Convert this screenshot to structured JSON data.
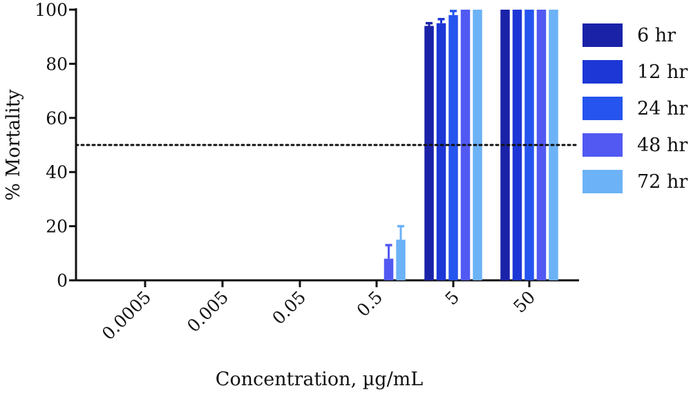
{
  "chart_data": {
    "type": "bar",
    "title": "",
    "xlabel": "Concentration, µg/mL",
    "ylabel": "% Mortality",
    "ylim": [
      0,
      100
    ],
    "yticks": [
      0,
      20,
      40,
      60,
      80,
      100
    ],
    "categories": [
      "0.0005",
      "0.005",
      "0.05",
      "0.5",
      "5",
      "50"
    ],
    "series": [
      {
        "name": "6 hr",
        "color": "#1a22a8",
        "values": [
          0,
          0,
          0,
          0,
          94,
          100
        ],
        "errors": [
          0,
          0,
          0,
          0,
          1,
          0
        ]
      },
      {
        "name": "12 hr",
        "color": "#1c37d6",
        "values": [
          0,
          0,
          0,
          0,
          95,
          100
        ],
        "errors": [
          0,
          0,
          0,
          0,
          1.5,
          0
        ]
      },
      {
        "name": "24 hr",
        "color": "#2554ee",
        "values": [
          0,
          0,
          0,
          0,
          98,
          100
        ],
        "errors": [
          0,
          0,
          0,
          0,
          1.5,
          0
        ]
      },
      {
        "name": "48 hr",
        "color": "#5159f2",
        "values": [
          0,
          0,
          0,
          8,
          100,
          100
        ],
        "errors": [
          0,
          0,
          0,
          5,
          0,
          0
        ]
      },
      {
        "name": "72 hr",
        "color": "#6cb2f6",
        "values": [
          0,
          0,
          0,
          15,
          100,
          100
        ],
        "errors": [
          0,
          0,
          0,
          5,
          0,
          0
        ]
      }
    ],
    "reference_line": {
      "y": 50,
      "style": "dotted"
    },
    "legend_position": "right",
    "grid": false
  }
}
